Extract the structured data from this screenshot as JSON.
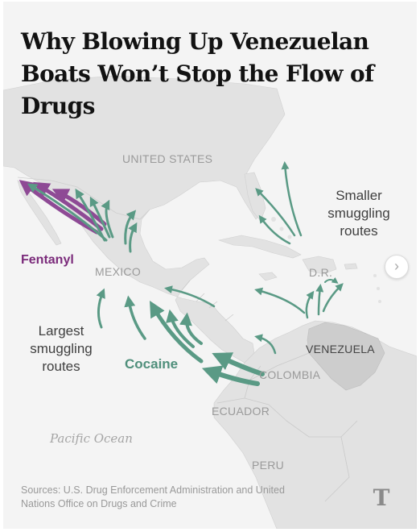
{
  "headline": "Why Blowing Up Venezuelan Boats Won’t Stop the Flow of Drugs",
  "labels": {
    "united_states": "UNITED STATES",
    "mexico": "MEXICO",
    "dr": "D.R.",
    "venezuela": "VENEZUELA",
    "colombia": "COLOMBIA",
    "ecuador": "ECUADOR",
    "peru": "PERU",
    "pacific_ocean": "Pacific Ocean"
  },
  "annotations": {
    "smaller_routes": "Smaller smuggling routes",
    "largest_routes": "Largest smuggling routes",
    "fentanyl": "Fentanyl",
    "cocaine": "Cocaine"
  },
  "sources": "Sources: U.S. Drug Enforcement Administration and United Nations Office on Drugs and Crime",
  "logo_text": "T",
  "next_button": "›",
  "colors": {
    "fentanyl": "#8e4a95",
    "cocaine": "#5a9a85",
    "land": "#e3e3e3",
    "water": "#f4f4f4"
  },
  "icons": {
    "next": "chevron-right-icon",
    "logo": "nyt-logo-icon"
  }
}
